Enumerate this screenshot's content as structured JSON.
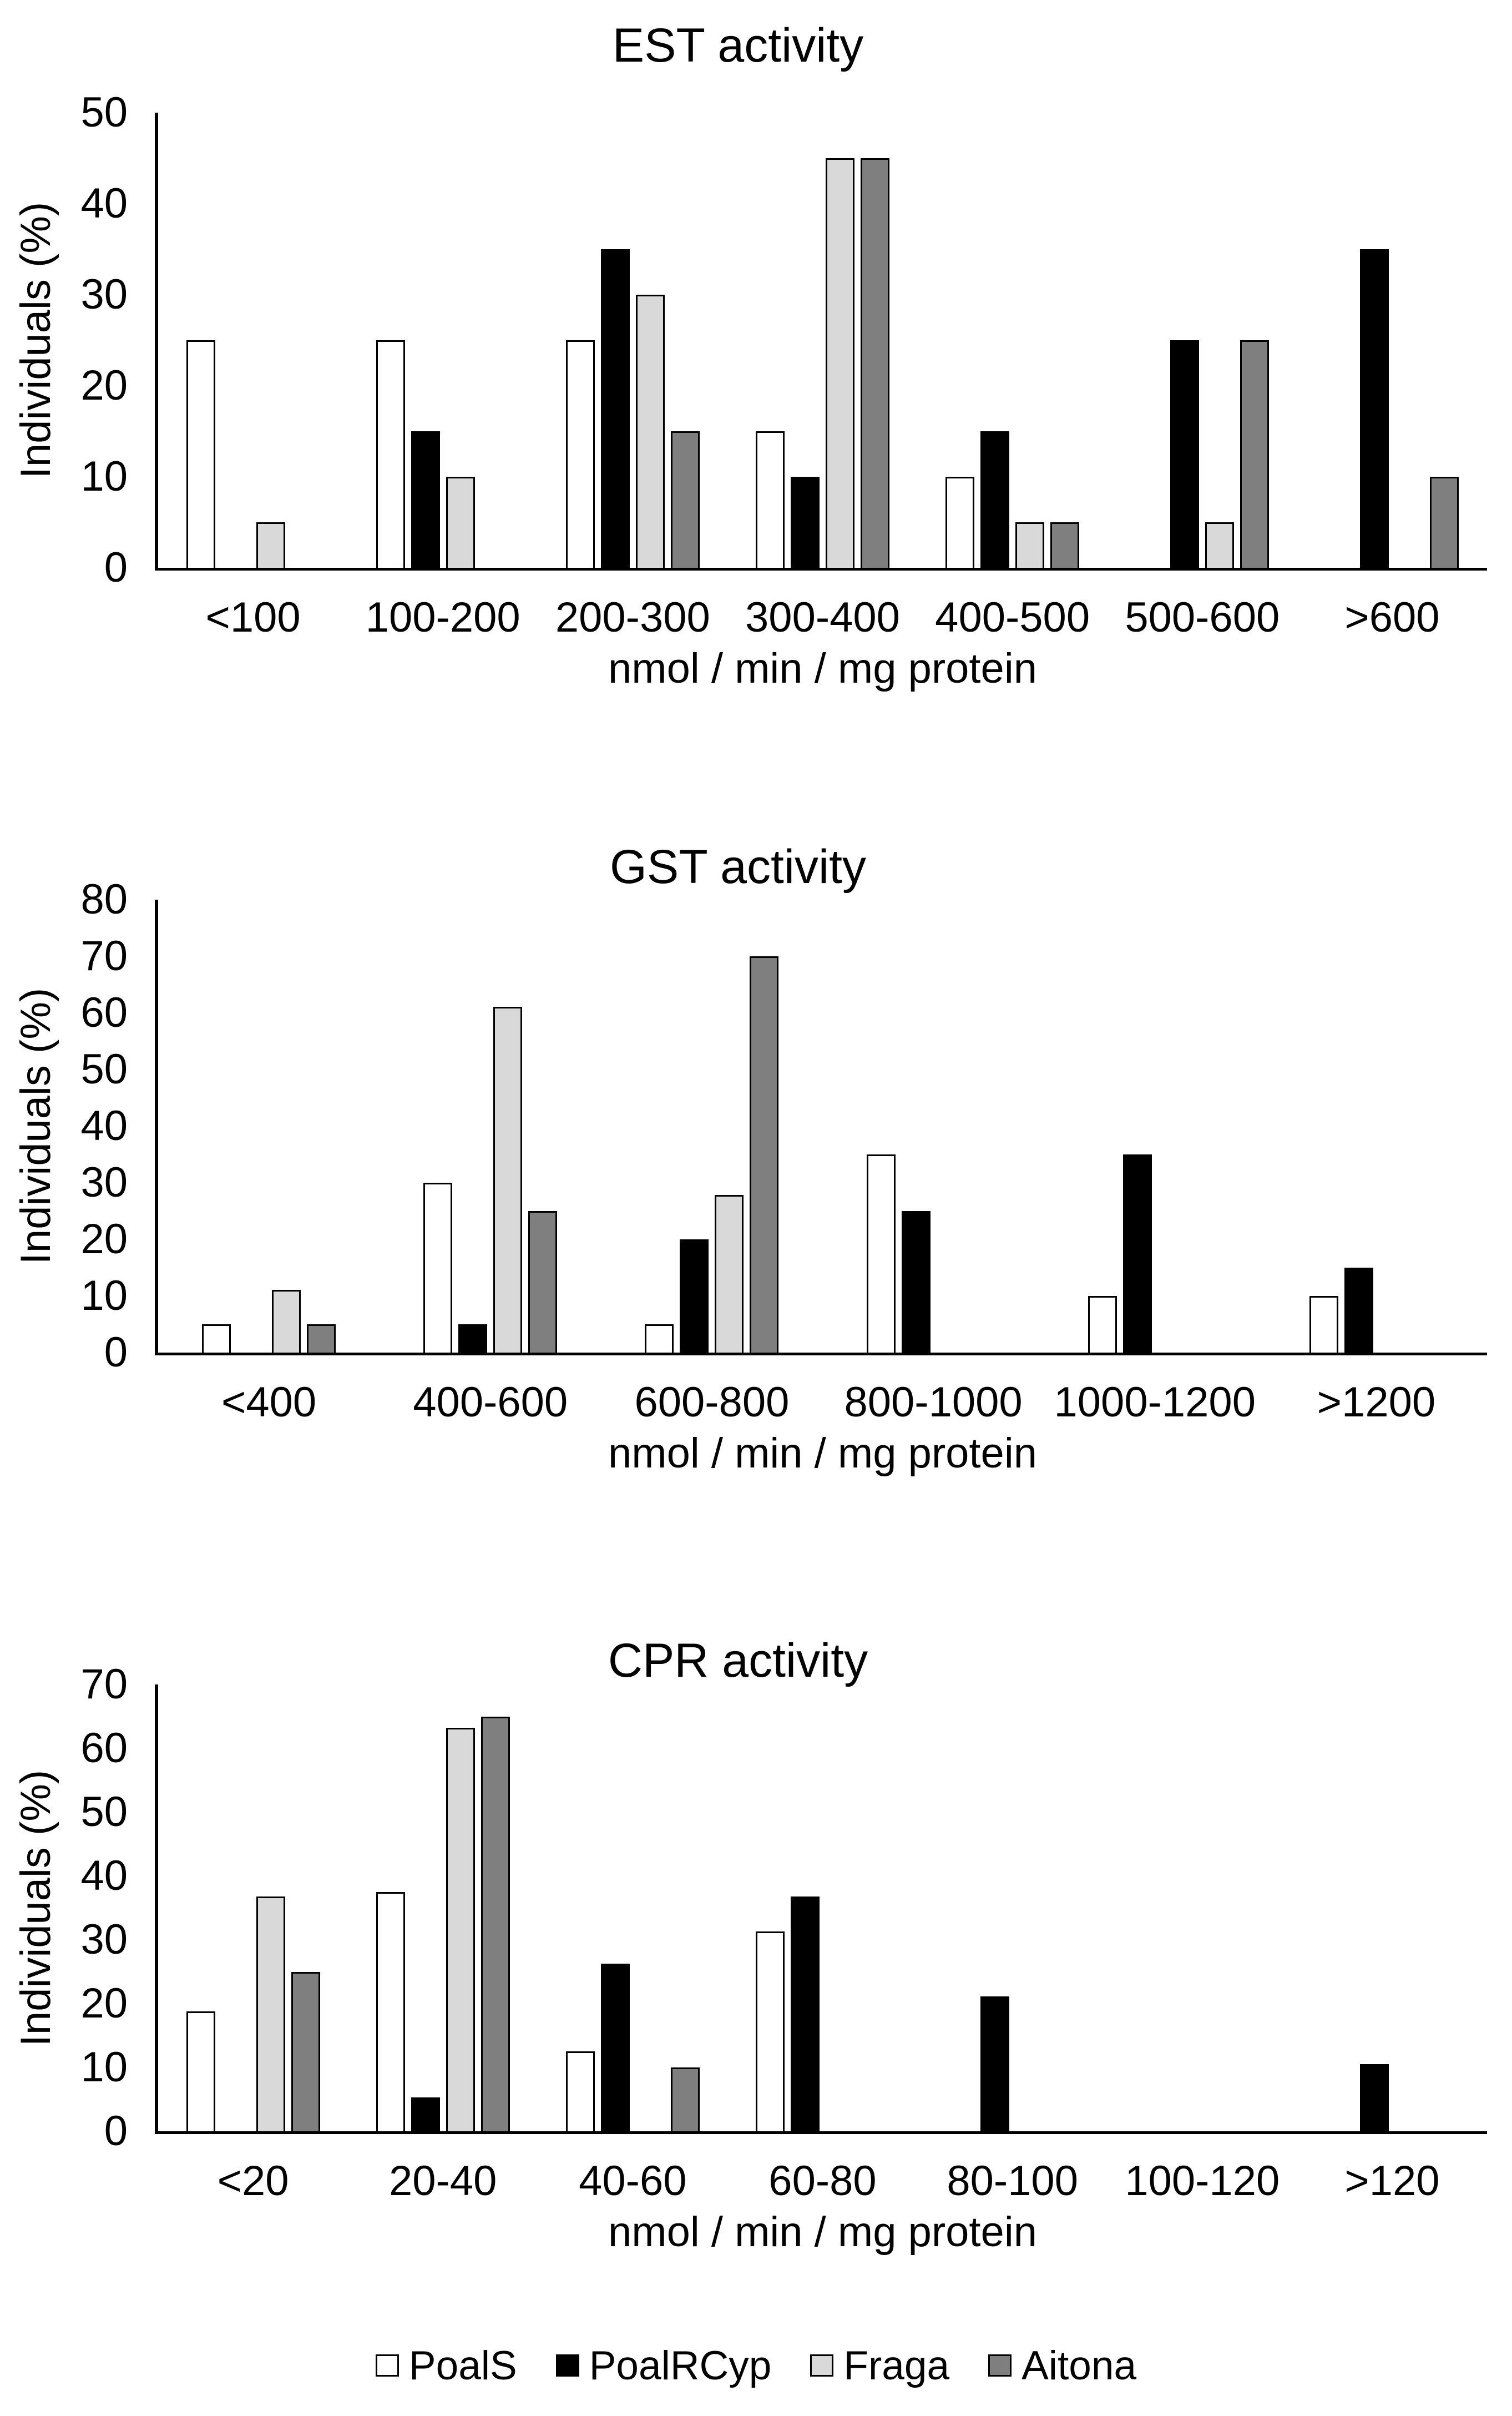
{
  "figure": {
    "y_axis_title": "Individuals (%)",
    "x_axis_title": "nmol / min / mg protein"
  },
  "legend": {
    "items": [
      {
        "label": "PoalS",
        "color": "#ffffff"
      },
      {
        "label": "PoalRCyp",
        "color": "#000000"
      },
      {
        "label": "Fraga",
        "color": "#d9d9d9"
      },
      {
        "label": "Aitona",
        "color": "#7f7f7f"
      }
    ]
  },
  "chart_data": [
    {
      "type": "bar",
      "title": "EST activity",
      "xlabel": "nmol / min / mg protein",
      "ylabel": "Individuals (%)",
      "ylim": [
        0,
        50
      ],
      "yticks": [
        0,
        10,
        20,
        30,
        40,
        50
      ],
      "grid": false,
      "legend_position": "shared-bottom",
      "categories": [
        "<100",
        "100-200",
        "200-300",
        "300-400",
        "400-500",
        "500-600",
        ">600"
      ],
      "series": [
        {
          "name": "PoalS",
          "color": "#ffffff",
          "values": [
            25,
            25,
            25,
            15,
            10,
            0,
            0
          ]
        },
        {
          "name": "PoalRCyp",
          "color": "#000000",
          "values": [
            0,
            15,
            35,
            10,
            15,
            25,
            35
          ]
        },
        {
          "name": "Fraga",
          "color": "#d9d9d9",
          "values": [
            5,
            10,
            30,
            45,
            5,
            5,
            0
          ]
        },
        {
          "name": "Aitona",
          "color": "#7f7f7f",
          "values": [
            0,
            0,
            15,
            45,
            5,
            25,
            10
          ]
        }
      ]
    },
    {
      "type": "bar",
      "title": "GST activity",
      "xlabel": "nmol / min / mg protein",
      "ylabel": "Individuals (%)",
      "ylim": [
        0,
        80
      ],
      "yticks": [
        0,
        10,
        20,
        30,
        40,
        50,
        60,
        70,
        80
      ],
      "grid": false,
      "legend_position": "shared-bottom",
      "categories": [
        "<400",
        "400-600",
        "600-800",
        "800-1000",
        "1000-1200",
        ">1200"
      ],
      "series": [
        {
          "name": "PoalS",
          "color": "#ffffff",
          "values": [
            5,
            30,
            5,
            35,
            10,
            10
          ]
        },
        {
          "name": "PoalRCyp",
          "color": "#000000",
          "values": [
            0,
            5,
            20,
            25,
            35,
            15
          ]
        },
        {
          "name": "Fraga",
          "color": "#d9d9d9",
          "values": [
            11.1,
            61.1,
            27.8,
            0,
            0,
            0
          ]
        },
        {
          "name": "Aitona",
          "color": "#7f7f7f",
          "values": [
            5,
            25,
            70,
            0,
            0,
            0
          ]
        }
      ]
    },
    {
      "type": "bar",
      "title": "CPR activity",
      "xlabel": "nmol / min / mg protein",
      "ylabel": "Individuals (%)",
      "ylim": [
        0,
        70
      ],
      "yticks": [
        0,
        10,
        20,
        30,
        40,
        50,
        60,
        70
      ],
      "grid": false,
      "legend_position": "shared-bottom",
      "categories": [
        "<20",
        "20-40",
        "40-60",
        "60-80",
        "80-100",
        "100-120",
        ">120"
      ],
      "series": [
        {
          "name": "PoalS",
          "color": "#ffffff",
          "values": [
            18.8,
            37.5,
            12.5,
            31.3,
            0,
            0,
            0
          ]
        },
        {
          "name": "PoalRCyp",
          "color": "#000000",
          "values": [
            0,
            5.3,
            26.3,
            36.8,
            21.1,
            0,
            10.5
          ]
        },
        {
          "name": "Fraga",
          "color": "#d9d9d9",
          "values": [
            36.8,
            63.2,
            0,
            0,
            0,
            0,
            0
          ]
        },
        {
          "name": "Aitona",
          "color": "#7f7f7f",
          "values": [
            25,
            65,
            10,
            0,
            0,
            0,
            0
          ]
        }
      ]
    }
  ]
}
